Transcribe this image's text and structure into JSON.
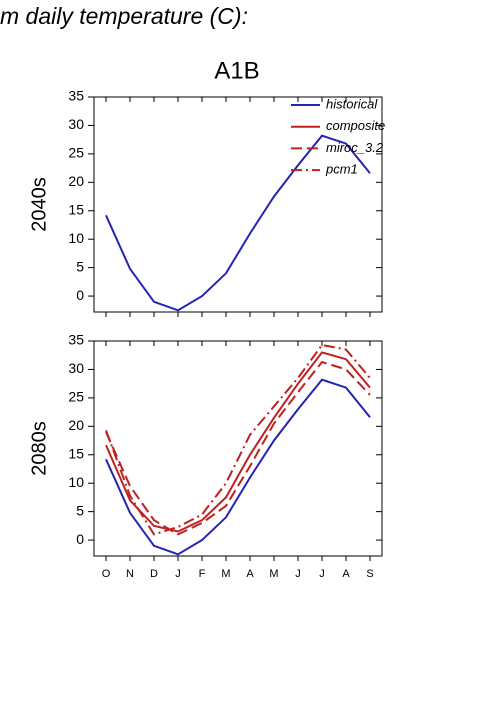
{
  "title": "m daily temperature (C):",
  "subtitle": "A1B",
  "chart_data": [
    {
      "type": "line",
      "ylabel": "2040s",
      "categories": [
        null,
        null,
        null,
        null,
        null,
        null,
        null,
        null,
        null,
        null,
        null,
        null
      ],
      "ylim": [
        -2.8,
        35
      ],
      "yticks": [
        0,
        5,
        10,
        15,
        20,
        25,
        30,
        35
      ],
      "series": [
        {
          "name": "historical",
          "color": "#2323b4",
          "dash": "solid",
          "values": [
            14.2,
            4.8,
            -1,
            -2.5,
            0,
            4,
            11,
            17.5,
            23,
            28.2,
            26.8,
            21.6
          ]
        }
      ]
    },
    {
      "type": "line",
      "ylabel": "2080s",
      "categories": [
        "O",
        "N",
        "D",
        "J",
        "F",
        "M",
        "A",
        "M",
        "J",
        "J",
        "A",
        "S"
      ],
      "ylim": [
        -2.8,
        35
      ],
      "yticks": [
        0,
        5,
        10,
        15,
        20,
        25,
        30,
        35
      ],
      "series": [
        {
          "name": "historical",
          "color": "#2323b4",
          "dash": "solid",
          "values": [
            14.2,
            4.8,
            -1,
            -2.5,
            0,
            4,
            11,
            17.5,
            23,
            28.2,
            26.8,
            21.6
          ]
        },
        {
          "name": "composite",
          "color": "#c02020",
          "dash": "solid",
          "values": [
            16.7,
            7,
            2.5,
            1.5,
            3.5,
            7.5,
            15,
            21.5,
            27.5,
            33,
            31.8,
            26.8
          ]
        },
        {
          "name": "miroc_3.2",
          "color": "#c02020",
          "dash": "dashed",
          "values": [
            19,
            9.5,
            3.5,
            1,
            3,
            6,
            13,
            20.5,
            26,
            31.3,
            30,
            25.5
          ]
        },
        {
          "name": "pcm1",
          "color": "#c02020",
          "dash": "dashdot",
          "values": [
            19.3,
            7.8,
            1,
            2.3,
            4.5,
            10,
            18.5,
            23.5,
            28.5,
            34.3,
            33.5,
            28.5
          ]
        }
      ]
    }
  ]
}
